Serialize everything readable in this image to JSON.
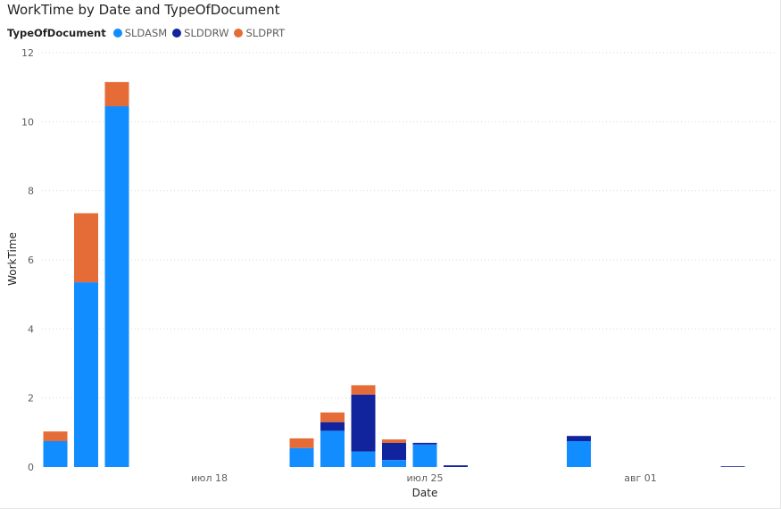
{
  "chart_data": {
    "type": "bar",
    "stacked": true,
    "title": "WorkTime by Date and TypeOfDocument",
    "legend_title": "TypeOfDocument",
    "legend_position": "top-left",
    "xlabel": "Date",
    "ylabel": "WorkTime",
    "ylim": [
      0,
      12
    ],
    "yticks": [
      0,
      2,
      4,
      6,
      8,
      10,
      12
    ],
    "grid": true,
    "x_tick_labels": [
      {
        "label": "июл 18",
        "date": "2019-07-18"
      },
      {
        "label": "июл 25",
        "date": "2019-07-25"
      },
      {
        "label": "авг 01",
        "date": "2019-08-01"
      }
    ],
    "categories": [
      "2019-07-13",
      "2019-07-14",
      "2019-07-15",
      "2019-07-21",
      "2019-07-22",
      "2019-07-23",
      "2019-07-24",
      "2019-07-25",
      "2019-07-26",
      "2019-07-30",
      "2019-08-04"
    ],
    "series": [
      {
        "name": "SLDASM",
        "color": "#118DFF",
        "values": [
          0.75,
          5.35,
          10.45,
          0.55,
          1.05,
          0.45,
          0.2,
          0.65,
          0,
          0.75,
          0
        ]
      },
      {
        "name": "SLDDRW",
        "color": "#12239E",
        "values": [
          0,
          0,
          0,
          0,
          0.25,
          1.65,
          0.5,
          0.05,
          0.05,
          0.15,
          0.02
        ]
      },
      {
        "name": "SLDPRT",
        "color": "#E66C37",
        "values": [
          0.28,
          2.0,
          0.7,
          0.28,
          0.28,
          0.27,
          0.1,
          0,
          0,
          0,
          0
        ]
      }
    ]
  }
}
